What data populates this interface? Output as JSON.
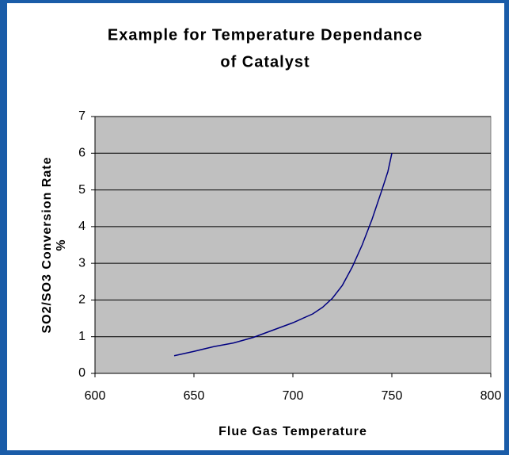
{
  "chart_data": {
    "type": "line",
    "title": [
      "Example for Temperature Dependance",
      "of Catalyst"
    ],
    "xlabel": "Flue Gas Temperature",
    "ylabel": [
      "SO2/SO3 Conversion Rate",
      "%"
    ],
    "series": [
      {
        "color": "#000080",
        "x": [
          640,
          650,
          660,
          670,
          680,
          690,
          700,
          710,
          715,
          720,
          725,
          730,
          735,
          740,
          745,
          748,
          750
        ],
        "values": [
          0.48,
          0.6,
          0.73,
          0.83,
          0.98,
          1.18,
          1.38,
          1.62,
          1.8,
          2.05,
          2.4,
          2.9,
          3.5,
          4.2,
          5.0,
          5.5,
          6.0
        ]
      }
    ],
    "xlim": [
      600,
      800
    ],
    "xticks": [
      600,
      650,
      700,
      750,
      800
    ],
    "ylim": [
      0,
      7
    ],
    "yticks": [
      0,
      1,
      2,
      3,
      4,
      5,
      6,
      7
    ],
    "grid": true
  }
}
